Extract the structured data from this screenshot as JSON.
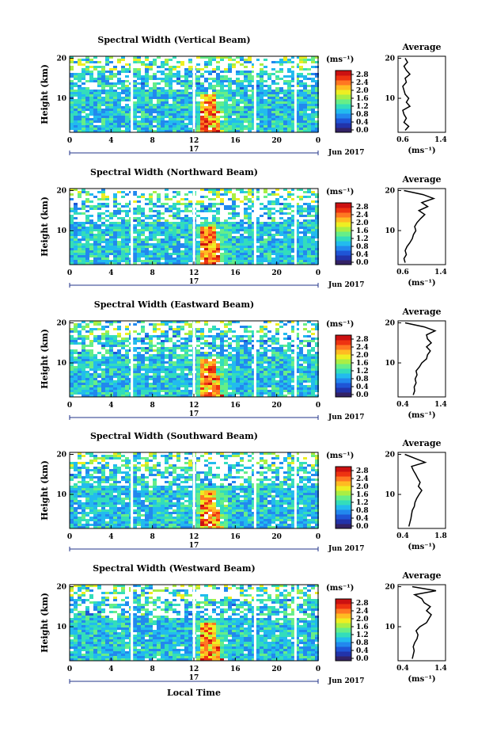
{
  "colors": {
    "scale": [
      "#332266",
      "#2233aa",
      "#1f55d6",
      "#2288ee",
      "#22bbee",
      "#33ddbb",
      "#66ee88",
      "#aaee44",
      "#eeee22",
      "#ffbb22",
      "#ff7722",
      "#ee3311",
      "#cc1111"
    ],
    "gap": "#ffffff",
    "line": "#000000"
  },
  "xlabel": "Local Time",
  "date_label": "Jun 2017",
  "day_label": "17",
  "colorbar_unit": "(ms⁻¹)",
  "colorbar_ticks": [
    "2.8",
    "2.4",
    "2.0",
    "1.6",
    "1.2",
    "0.8",
    "0.4",
    "0.0"
  ],
  "avg_title": "Average",
  "avg_xlabel": "(ms⁻¹)",
  "ylabel": "Height (km)",
  "x_ticks": [
    "0",
    "4",
    "8",
    "12",
    "16",
    "20",
    "0"
  ],
  "y_ticks": [
    "20",
    "10"
  ],
  "chart_data": [
    {
      "type": "heatmap",
      "title": "Spectral Width (Vertical Beam)",
      "xlim": [
        0,
        24
      ],
      "ylim": [
        1.5,
        20.5
      ],
      "data_gaps_hours": [
        [
          5.9,
          6.1
        ],
        [
          11.9,
          12.1
        ],
        [
          17.8,
          18.0
        ],
        [
          21.7,
          21.9
        ]
      ],
      "hotspot": {
        "x_hours": [
          12.4,
          13.8
        ],
        "y_km": [
          1.5,
          11.5
        ],
        "value": 2.4
      },
      "avg_profile": {
        "xlim": [
          0.6,
          1.4
        ],
        "xticks": [
          "0.6",
          "1.4"
        ],
        "y_km": [
          2,
          3,
          4,
          5,
          6,
          7,
          8,
          9,
          10,
          11,
          12,
          13,
          14,
          15,
          16,
          17,
          18,
          19,
          20
        ],
        "values": [
          0.72,
          0.78,
          0.7,
          0.74,
          0.7,
          0.68,
          0.8,
          0.74,
          0.78,
          0.72,
          0.7,
          0.68,
          0.74,
          0.72,
          0.8,
          0.74,
          0.7,
          0.76,
          0.72
        ]
      }
    },
    {
      "type": "heatmap",
      "title": "Spectral Width (Northward Beam)",
      "xlim": [
        0,
        24
      ],
      "ylim": [
        1.5,
        20.5
      ],
      "data_gaps_hours": [
        [
          5.9,
          6.1
        ],
        [
          11.9,
          12.1
        ],
        [
          17.8,
          18.0
        ],
        [
          21.7,
          21.9
        ]
      ],
      "hotspot": {
        "x_hours": [
          12.4,
          13.8
        ],
        "y_km": [
          1.5,
          11.5
        ],
        "value": 2.4
      },
      "avg_profile": {
        "xlim": [
          0.6,
          1.4
        ],
        "xticks": [
          "0.6",
          "1.4"
        ],
        "y_km": [
          2,
          3,
          4,
          5,
          6,
          7,
          8,
          9,
          10,
          11,
          12,
          13,
          14,
          15,
          16,
          17,
          18,
          19,
          20
        ],
        "values": [
          0.72,
          0.7,
          0.74,
          0.72,
          0.75,
          0.8,
          0.84,
          0.86,
          0.9,
          0.88,
          0.92,
          0.98,
          1.05,
          0.95,
          1.1,
          1.0,
          1.2,
          1.02,
          0.7
        ]
      }
    },
    {
      "type": "heatmap",
      "title": "Spectral Width (Eastward Beam)",
      "xlim": [
        0,
        24
      ],
      "ylim": [
        1.5,
        20.5
      ],
      "data_gaps_hours": [
        [
          5.9,
          6.1
        ],
        [
          11.9,
          12.1
        ],
        [
          17.8,
          18.0
        ],
        [
          21.7,
          21.9
        ]
      ],
      "hotspot": {
        "x_hours": [
          12.4,
          13.8
        ],
        "y_km": [
          1.5,
          11.5
        ],
        "value": 2.4
      },
      "avg_profile": {
        "xlim": [
          0.4,
          1.4
        ],
        "xticks": [
          "0.4",
          "1.4"
        ],
        "y_km": [
          2,
          3,
          4,
          5,
          6,
          7,
          8,
          9,
          10,
          11,
          12,
          13,
          14,
          15,
          16,
          17,
          18,
          19,
          20
        ],
        "values": [
          0.72,
          0.75,
          0.74,
          0.78,
          0.76,
          0.8,
          0.78,
          0.85,
          0.9,
          1.0,
          1.02,
          1.08,
          1.0,
          1.1,
          1.02,
          1.0,
          1.18,
          0.95,
          0.55
        ]
      }
    },
    {
      "type": "heatmap",
      "title": "Spectral Width (Southward Beam)",
      "xlim": [
        0,
        24
      ],
      "ylim": [
        1.5,
        20.5
      ],
      "data_gaps_hours": [
        [
          5.9,
          6.1
        ],
        [
          11.9,
          12.1
        ],
        [
          17.8,
          18.0
        ],
        [
          21.7,
          21.9
        ]
      ],
      "hotspot": {
        "x_hours": [
          12.4,
          13.8
        ],
        "y_km": [
          1.5,
          11.5
        ],
        "value": 2.4
      },
      "avg_profile": {
        "xlim": [
          0.4,
          1.8
        ],
        "xticks": [
          "0.4",
          "1.8"
        ],
        "y_km": [
          2,
          3,
          4,
          5,
          6,
          7,
          8,
          9,
          10,
          11,
          12,
          13,
          14,
          15,
          16,
          17,
          18,
          19,
          20
        ],
        "values": [
          0.72,
          0.75,
          0.78,
          0.8,
          0.82,
          0.88,
          0.9,
          0.95,
          1.02,
          1.1,
          1.0,
          1.05,
          0.98,
          0.92,
          0.85,
          0.8,
          1.2,
          0.9,
          0.6
        ]
      }
    },
    {
      "type": "heatmap",
      "title": "Spectral Width (Westward Beam)",
      "xlim": [
        0,
        24
      ],
      "ylim": [
        1.5,
        20.5
      ],
      "data_gaps_hours": [
        [
          5.9,
          6.1
        ],
        [
          11.9,
          12.1
        ],
        [
          17.8,
          18.0
        ],
        [
          21.7,
          21.9
        ]
      ],
      "hotspot": {
        "x_hours": [
          12.4,
          13.8
        ],
        "y_km": [
          1.5,
          11.5
        ],
        "value": 2.4
      },
      "avg_profile": {
        "xlim": [
          0.4,
          1.4
        ],
        "xticks": [
          "0.4",
          "1.4"
        ],
        "y_km": [
          2,
          3,
          4,
          5,
          6,
          7,
          8,
          9,
          10,
          11,
          12,
          13,
          14,
          15,
          16,
          17,
          18,
          19,
          20
        ],
        "values": [
          0.7,
          0.72,
          0.74,
          0.72,
          0.75,
          0.8,
          0.82,
          0.78,
          0.86,
          1.0,
          1.05,
          1.1,
          1.0,
          1.08,
          0.95,
          0.9,
          0.75,
          1.2,
          0.7
        ]
      }
    }
  ]
}
